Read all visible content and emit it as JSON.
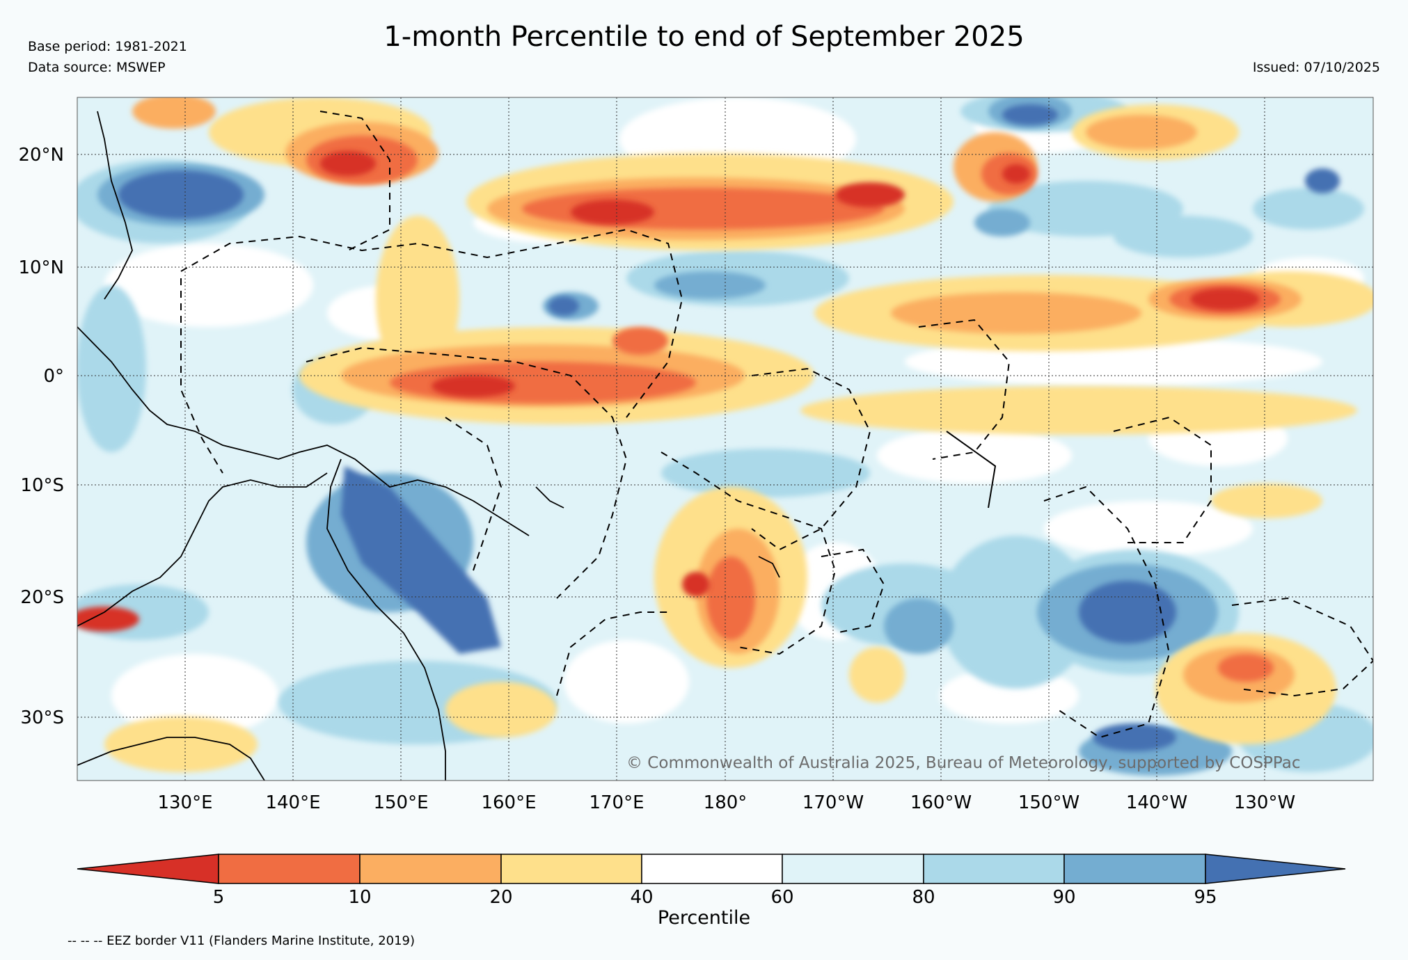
{
  "header": {
    "title": "1-month Percentile to end of September 2025",
    "base_period": "Base period: 1981-2021",
    "data_source": "Data source: MSWEP",
    "issued": "Issued: 07/10/2025"
  },
  "map": {
    "lat_labels": [
      "20°N",
      "10°N",
      "0°",
      "10°S",
      "20°S",
      "30°S"
    ],
    "lon_labels": [
      "130°E",
      "140°E",
      "150°E",
      "160°E",
      "170°E",
      "180°",
      "170°W",
      "160°W",
      "150°W",
      "140°W",
      "130°W"
    ],
    "copyright": "© Commonwealth of Australia 2025, Bureau of Meteorology, supported by COSPPac",
    "palette": {
      "lt5": "#d73027",
      "p5_10": "#f06d42",
      "p10_20": "#fbae61",
      "p20_40": "#fee08b",
      "p40_60": "#ffffff",
      "p60_80": "#e0f3f8",
      "p80_90": "#abd9e9",
      "p90_95": "#74add1",
      "gt95": "#4471b2"
    }
  },
  "colorbar": {
    "ticks": [
      "5",
      "10",
      "20",
      "40",
      "60",
      "80",
      "90",
      "95"
    ],
    "label": "Percentile"
  },
  "footer": {
    "eez_note": "-- -- -- EEZ border V11 (Flanders Marine Institute, 2019)"
  }
}
